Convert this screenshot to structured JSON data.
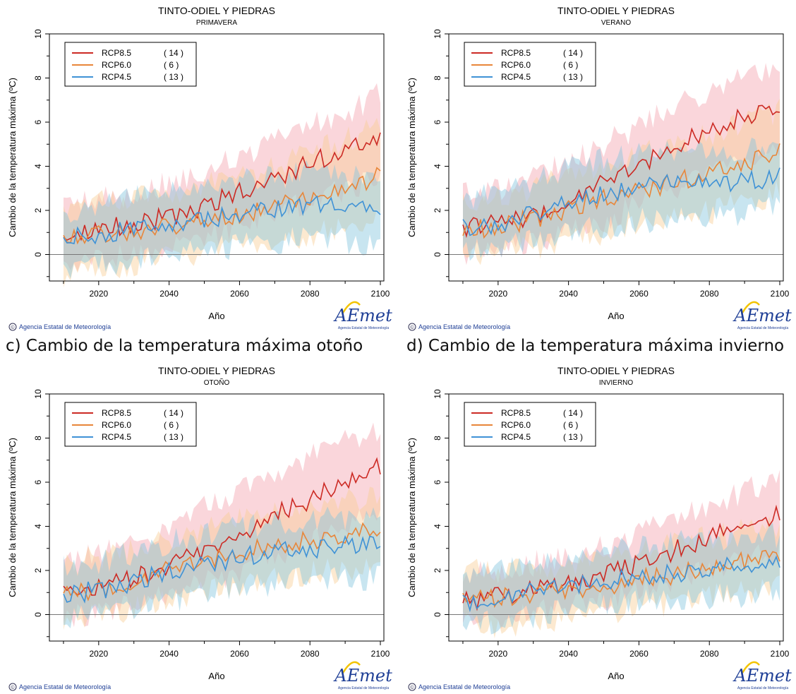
{
  "colors": {
    "rcp85": "#cc2a24",
    "rcp60": "#e8863a",
    "rcp45": "#3f92d6",
    "band85": "#f4a3b0",
    "band60": "#f8cf96",
    "band45": "#86c6de",
    "aemet_blue": "#1f3f96",
    "aemet_yellow": "#f2c300"
  },
  "captions": {
    "c": "c) Cambio de la temperatura máxima otoño",
    "d": "d) Cambio de la temperatura máxima invierno"
  },
  "chart_data": [
    {
      "type": "line",
      "title": "TINTO-ODIEL Y PIEDRAS",
      "subtitle": "PRIMAVERA",
      "xlabel": "Año",
      "ylabel": "Cambio de la temperatura máxima (ºC)",
      "xlim": [
        2006,
        2101
      ],
      "ylim": [
        -1.2,
        10
      ],
      "xticks": [
        2020,
        2040,
        2060,
        2080,
        2100
      ],
      "yticks": [
        0,
        2,
        4,
        6,
        8,
        10
      ],
      "legend_position": "top-left",
      "credit": "Agencia Estatal de Meteorología",
      "logo_text": "AEmet",
      "logo_subtext": "Agencia Estatal de Meteorología",
      "series": [
        {
          "name": "RCP8.5",
          "count": "( 14 )",
          "key": "rcp85",
          "band": "band85",
          "x": [
            2010,
            2020,
            2030,
            2040,
            2050,
            2060,
            2070,
            2080,
            2090,
            2100
          ],
          "values": [
            0.8,
            1.1,
            1.4,
            1.7,
            2.2,
            2.8,
            3.4,
            4.2,
            4.6,
            5.4
          ],
          "upper": [
            2.1,
            2.5,
            2.8,
            3.2,
            3.8,
            4.5,
            5.1,
            5.9,
            6.4,
            7.3
          ],
          "lower": [
            -0.4,
            -0.2,
            0.1,
            0.4,
            0.8,
            1.3,
            1.8,
            2.5,
            2.9,
            3.4
          ]
        },
        {
          "name": "RCP6.0",
          "count": "(  6 )",
          "key": "rcp60",
          "band": "band60",
          "x": [
            2010,
            2020,
            2030,
            2040,
            2050,
            2060,
            2070,
            2080,
            2090,
            2100
          ],
          "values": [
            0.8,
            0.9,
            1.1,
            1.3,
            1.6,
            1.8,
            2.2,
            2.5,
            3.0,
            3.6
          ],
          "upper": [
            2.0,
            2.3,
            2.6,
            2.8,
            3.2,
            3.6,
            4.0,
            4.6,
            5.2,
            5.8
          ],
          "lower": [
            -0.9,
            -0.6,
            -0.4,
            -0.2,
            0.1,
            0.3,
            0.6,
            0.9,
            1.3,
            1.6
          ]
        },
        {
          "name": "RCP4.5",
          "count": "( 13 )",
          "key": "rcp45",
          "band": "band45",
          "x": [
            2010,
            2020,
            2030,
            2040,
            2050,
            2060,
            2070,
            2080,
            2090,
            2100
          ],
          "values": [
            0.7,
            0.9,
            1.1,
            1.4,
            1.6,
            1.9,
            2.1,
            2.3,
            2.2,
            2.1
          ],
          "upper": [
            1.9,
            2.2,
            2.6,
            2.8,
            3.1,
            3.3,
            3.5,
            3.7,
            3.6,
            3.6
          ],
          "lower": [
            -0.6,
            -0.4,
            -0.3,
            0.0,
            0.2,
            0.4,
            0.6,
            0.7,
            0.6,
            0.4
          ]
        }
      ]
    },
    {
      "type": "line",
      "title": "TINTO-ODIEL Y PIEDRAS",
      "subtitle": "VERANO",
      "xlabel": "Año",
      "ylabel": "Cambio de la temperatura máxima (ºC)",
      "xlim": [
        2006,
        2101
      ],
      "ylim": [
        -1.2,
        10
      ],
      "xticks": [
        2020,
        2040,
        2060,
        2080,
        2100
      ],
      "yticks": [
        0,
        2,
        4,
        6,
        8,
        10
      ],
      "legend_position": "top-left",
      "credit": "Agencia Estatal de Meteorología",
      "logo_text": "AEmet",
      "logo_subtext": "Agencia Estatal de Meteorología",
      "series": [
        {
          "name": "RCP8.5",
          "count": "( 14 )",
          "key": "rcp85",
          "band": "band85",
          "x": [
            2010,
            2020,
            2030,
            2040,
            2050,
            2060,
            2070,
            2080,
            2090,
            2100
          ],
          "values": [
            1.2,
            1.4,
            1.8,
            2.5,
            3.2,
            4.0,
            4.9,
            5.6,
            6.3,
            6.8
          ],
          "upper": [
            2.7,
            2.9,
            3.4,
            4.2,
            5.0,
            5.8,
            6.7,
            7.4,
            8.1,
            8.2
          ],
          "lower": [
            0.0,
            0.2,
            0.6,
            1.1,
            1.6,
            2.3,
            3.0,
            3.6,
            4.3,
            4.8
          ]
        },
        {
          "name": "RCP6.0",
          "count": "(  6 )",
          "key": "rcp60",
          "band": "band60",
          "x": [
            2010,
            2020,
            2030,
            2040,
            2050,
            2060,
            2070,
            2080,
            2090,
            2100
          ],
          "values": [
            1.0,
            1.3,
            1.6,
            2.1,
            2.5,
            2.9,
            3.3,
            3.6,
            4.2,
            4.6
          ],
          "upper": [
            2.4,
            2.6,
            3.0,
            3.6,
            4.0,
            4.5,
            5.0,
            5.4,
            6.0,
            6.5
          ],
          "lower": [
            -0.2,
            0.1,
            0.3,
            0.7,
            1.0,
            1.3,
            1.6,
            1.9,
            2.4,
            2.8
          ]
        },
        {
          "name": "RCP4.5",
          "count": "( 13 )",
          "key": "rcp45",
          "band": "band45",
          "x": [
            2010,
            2020,
            2030,
            2040,
            2050,
            2060,
            2070,
            2080,
            2090,
            2100
          ],
          "values": [
            1.2,
            1.4,
            1.9,
            2.4,
            2.8,
            3.0,
            3.3,
            3.3,
            3.3,
            3.5
          ],
          "upper": [
            2.6,
            2.8,
            3.4,
            3.9,
            4.3,
            4.5,
            4.8,
            4.7,
            4.7,
            4.9
          ],
          "lower": [
            0.1,
            0.3,
            0.6,
            1.0,
            1.3,
            1.5,
            1.7,
            1.7,
            1.9,
            2.1
          ]
        }
      ]
    },
    {
      "type": "line",
      "title": "TINTO-ODIEL Y PIEDRAS",
      "subtitle": "OTOÑO",
      "xlabel": "Año",
      "ylabel": "Cambio de la temperatura máxima (ºC)",
      "xlim": [
        2006,
        2101
      ],
      "ylim": [
        -1.2,
        10
      ],
      "xticks": [
        2020,
        2040,
        2060,
        2080,
        2100
      ],
      "yticks": [
        0,
        2,
        4,
        6,
        8,
        10
      ],
      "legend_position": "top-left",
      "credit": "Agencia Estatal de Meteorología",
      "logo_text": "AEmet",
      "logo_subtext": "Agencia Estatal de Meteorología",
      "series": [
        {
          "name": "RCP8.5",
          "count": "( 14 )",
          "key": "rcp85",
          "band": "band85",
          "x": [
            2010,
            2020,
            2030,
            2040,
            2050,
            2060,
            2070,
            2080,
            2090,
            2100
          ],
          "values": [
            1.0,
            1.3,
            1.7,
            2.2,
            2.9,
            3.7,
            4.5,
            5.2,
            6.0,
            6.7
          ],
          "upper": [
            2.4,
            2.7,
            3.2,
            3.9,
            4.8,
            5.6,
            6.5,
            7.2,
            8.0,
            8.3
          ],
          "lower": [
            -0.2,
            0.1,
            0.4,
            0.9,
            1.4,
            2.0,
            2.7,
            3.3,
            4.0,
            4.6
          ]
        },
        {
          "name": "RCP6.0",
          "count": "(  6 )",
          "key": "rcp60",
          "band": "band60",
          "x": [
            2010,
            2020,
            2030,
            2040,
            2050,
            2060,
            2070,
            2080,
            2090,
            2100
          ],
          "values": [
            0.9,
            1.2,
            1.5,
            2.0,
            2.4,
            2.8,
            3.1,
            3.4,
            3.6,
            3.8
          ],
          "upper": [
            2.3,
            2.6,
            2.9,
            3.4,
            3.9,
            4.3,
            4.6,
            4.9,
            5.1,
            5.3
          ],
          "lower": [
            -0.3,
            0.0,
            0.3,
            0.6,
            1.0,
            1.3,
            1.6,
            1.9,
            2.0,
            2.2
          ]
        },
        {
          "name": "RCP4.5",
          "count": "( 13 )",
          "key": "rcp45",
          "band": "band45",
          "x": [
            2010,
            2020,
            2030,
            2040,
            2050,
            2060,
            2070,
            2080,
            2090,
            2100
          ],
          "values": [
            0.9,
            1.1,
            1.5,
            1.9,
            2.3,
            2.6,
            2.8,
            3.0,
            3.1,
            3.3
          ],
          "upper": [
            2.2,
            2.4,
            2.8,
            3.3,
            3.6,
            3.9,
            4.1,
            4.3,
            4.4,
            4.6
          ],
          "lower": [
            -0.2,
            0.0,
            0.3,
            0.6,
            0.9,
            1.2,
            1.4,
            1.6,
            1.6,
            1.7
          ]
        }
      ]
    },
    {
      "type": "line",
      "title": "TINTO-ODIEL Y PIEDRAS",
      "subtitle": "INVIERNO",
      "xlabel": "Año",
      "ylabel": "Cambio de la temperatura máxima (ºC)",
      "xlim": [
        2006,
        2101
      ],
      "ylim": [
        -1.2,
        10
      ],
      "xticks": [
        2020,
        2040,
        2060,
        2080,
        2100
      ],
      "yticks": [
        0,
        2,
        4,
        6,
        8,
        10
      ],
      "legend_position": "top-left",
      "credit": "Agencia Estatal de Meteorología",
      "logo_text": "AEmet",
      "logo_subtext": "Agencia Estatal de Meteorología",
      "series": [
        {
          "name": "RCP8.5",
          "count": "( 14 )",
          "key": "rcp85",
          "band": "band85",
          "x": [
            2010,
            2020,
            2030,
            2040,
            2050,
            2060,
            2070,
            2080,
            2090,
            2100
          ],
          "values": [
            0.6,
            0.8,
            1.1,
            1.4,
            1.8,
            2.3,
            2.9,
            3.5,
            4.1,
            4.6
          ],
          "upper": [
            1.8,
            2.0,
            2.3,
            2.7,
            3.1,
            3.7,
            4.3,
            5.0,
            5.6,
            6.2
          ],
          "lower": [
            -0.3,
            -0.1,
            0.1,
            0.4,
            0.7,
            1.1,
            1.5,
            2.0,
            2.5,
            2.9
          ]
        },
        {
          "name": "RCP6.0",
          "count": "(  6 )",
          "key": "rcp60",
          "band": "band60",
          "x": [
            2010,
            2020,
            2030,
            2040,
            2050,
            2060,
            2070,
            2080,
            2090,
            2100
          ],
          "values": [
            0.7,
            0.8,
            0.9,
            1.1,
            1.3,
            1.6,
            1.8,
            2.1,
            2.4,
            2.7
          ],
          "upper": [
            1.9,
            2.0,
            2.1,
            2.3,
            2.6,
            2.9,
            3.2,
            3.5,
            3.8,
            4.1
          ],
          "lower": [
            -0.4,
            -0.5,
            -0.5,
            -0.2,
            0.0,
            0.3,
            0.5,
            0.8,
            1.0,
            1.2
          ]
        },
        {
          "name": "RCP4.5",
          "count": "( 13 )",
          "key": "rcp45",
          "band": "band45",
          "x": [
            2010,
            2020,
            2030,
            2040,
            2050,
            2060,
            2070,
            2080,
            2090,
            2100
          ],
          "values": [
            0.6,
            0.8,
            1.0,
            1.3,
            1.5,
            1.7,
            1.9,
            2.1,
            2.2,
            2.3
          ],
          "upper": [
            1.8,
            2.0,
            2.2,
            2.5,
            2.8,
            3.0,
            3.2,
            3.4,
            3.5,
            3.6
          ],
          "lower": [
            -0.4,
            -0.3,
            -0.1,
            0.2,
            0.4,
            0.6,
            0.7,
            0.8,
            0.9,
            1.0
          ]
        }
      ]
    }
  ]
}
